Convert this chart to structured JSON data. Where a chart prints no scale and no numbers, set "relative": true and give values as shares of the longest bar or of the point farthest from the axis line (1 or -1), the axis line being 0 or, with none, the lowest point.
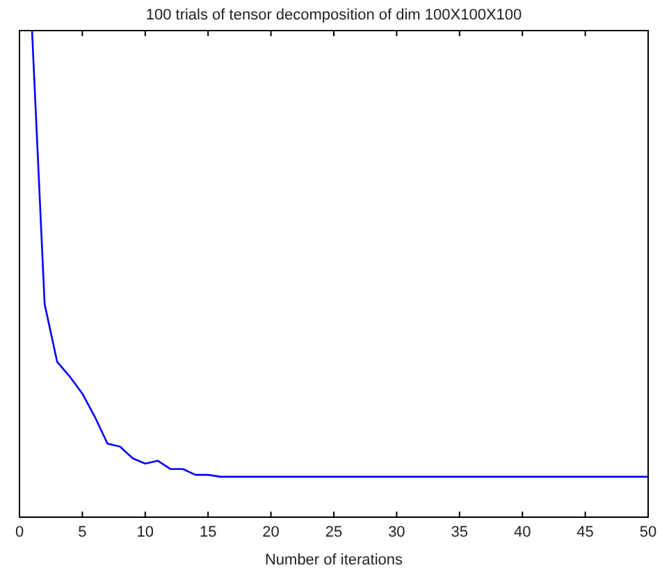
{
  "chart_data": {
    "type": "line",
    "title": "100 trials of tensor decomposition of dim 100X100X100",
    "xlabel": "Number of iterations",
    "relative": true,
    "x": [
      1,
      2,
      3,
      4,
      5,
      6,
      7,
      8,
      9,
      10,
      11,
      12,
      13,
      14,
      15,
      16,
      20,
      25,
      30,
      35,
      40,
      45,
      50
    ],
    "series": [
      {
        "color": "#0000ff",
        "values": [
          1.0,
          0.438,
          0.319,
          0.289,
          0.254,
          0.206,
          0.151,
          0.145,
          0.121,
          0.11,
          0.116,
          0.099,
          0.099,
          0.087,
          0.087,
          0.083,
          0.083,
          0.083,
          0.083,
          0.083,
          0.083,
          0.083,
          0.083
        ]
      }
    ],
    "xlim": [
      0,
      50
    ],
    "xticks": [
      0,
      5,
      10,
      15,
      20,
      25,
      30,
      35,
      40,
      45,
      50
    ],
    "grid": false,
    "marker": "none",
    "line_style": "solid"
  }
}
